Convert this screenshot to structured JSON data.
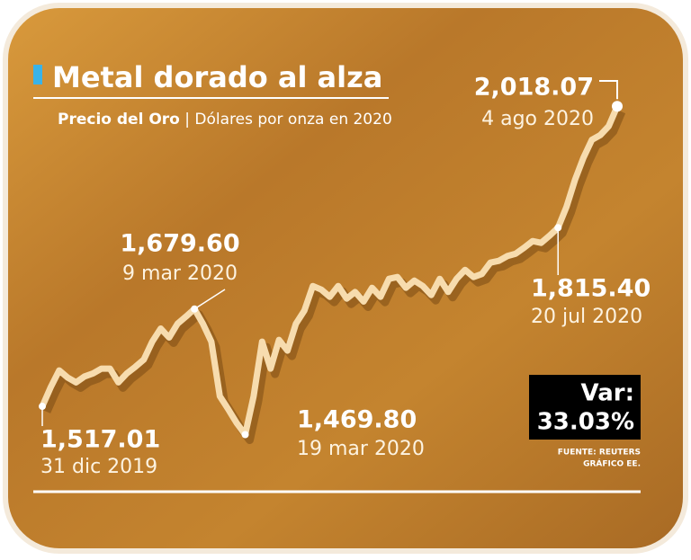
{
  "chart_data": {
    "type": "line",
    "title": "Metal dorado al alza",
    "subtitle_bold": "Precio del Oro",
    "subtitle": "| Dólares por onza en 2020",
    "values": [
      1517.01,
      1549,
      1577,
      1565,
      1557,
      1567,
      1572,
      1580,
      1580,
      1557,
      1572,
      1583,
      1595,
      1625,
      1647,
      1632,
      1655,
      1667,
      1679.6,
      1655,
      1625,
      1534,
      1512,
      1489,
      1469.8,
      1534,
      1625,
      1580,
      1628,
      1610,
      1655,
      1677,
      1718,
      1712,
      1700,
      1718,
      1697,
      1708,
      1692,
      1715,
      1700,
      1730,
      1733,
      1715,
      1727,
      1718,
      1703,
      1730,
      1708,
      1730,
      1745,
      1733,
      1738,
      1757,
      1760,
      1768,
      1772,
      1782,
      1793,
      1790,
      1802,
      1815.4,
      1850,
      1895,
      1932,
      1962,
      1970,
      1985,
      2018.07
    ],
    "color": "#f7dcae",
    "ylim": [
      1400,
      2050
    ],
    "annotations": [
      {
        "value": 1517.01,
        "label": "1,517.01",
        "date": "31 dic 2019"
      },
      {
        "value": 1679.6,
        "label": "1,679.60",
        "date": "9 mar 2020"
      },
      {
        "value": 1469.8,
        "label": "1,469.80",
        "date": "19 mar 2020"
      },
      {
        "value": 1815.4,
        "label": "1,815.40",
        "date": "20 jul 2020"
      },
      {
        "value": 2018.07,
        "label": "2,018.07",
        "date": "4 ago 2020"
      }
    ],
    "variation": {
      "title": "Var:",
      "value": 33.03,
      "value_label": "33.03%"
    },
    "source": "FUENTE: REUTERS",
    "credit": "GRÁFICO EE."
  }
}
